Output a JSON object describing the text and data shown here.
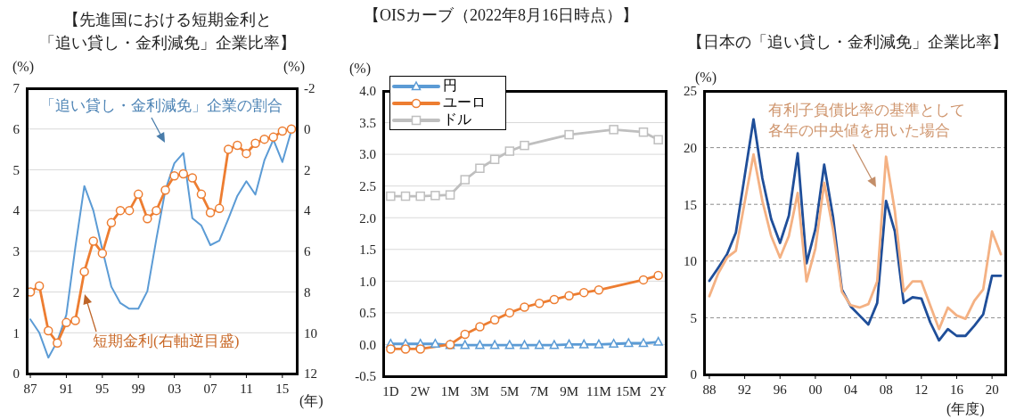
{
  "chart_data": [
    {
      "type": "line",
      "title": "【先進国における短期金利と",
      "subtitle": "「追い貸し・金利減免」企業比率】",
      "xlabel": "(年)",
      "ylabel": "(%)",
      "y2label": "(%)",
      "x": [
        1987,
        1988,
        1989,
        1990,
        1991,
        1992,
        1993,
        1994,
        1995,
        1996,
        1997,
        1998,
        1999,
        2000,
        2001,
        2002,
        2003,
        2004,
        2005,
        2006,
        2007,
        2008,
        2009,
        2010,
        2011,
        2012,
        2013,
        2014,
        2015,
        2016
      ],
      "series": [
        {
          "name": "「追い貸し・金利減免」企業の割合",
          "color": "#5b9bd5",
          "marker": "none",
          "values": [
            1.33,
            1.0,
            0.39,
            0.79,
            1.44,
            3.1,
            4.6,
            4.0,
            3.04,
            2.13,
            1.73,
            1.59,
            1.59,
            2.02,
            3.3,
            4.5,
            5.16,
            5.41,
            3.81,
            3.63,
            3.15,
            3.26,
            3.8,
            4.36,
            4.72,
            4.39,
            5.23,
            5.74,
            5.19,
            5.96
          ]
        },
        {
          "name": "短期金利(右軸逆目盛)",
          "color": "#ed7d31",
          "marker": "circle",
          "axis": "y2",
          "values": [
            8.0,
            7.7,
            9.9,
            10.5,
            9.5,
            9.4,
            7.0,
            5.5,
            6.1,
            4.6,
            4.0,
            4.0,
            3.2,
            4.4,
            4.0,
            3.0,
            2.3,
            2.2,
            2.4,
            3.2,
            4.1,
            3.9,
            1.0,
            0.8,
            1.2,
            0.7,
            0.5,
            0.4,
            0.1,
            0.0
          ]
        }
      ],
      "xlim": [
        1986.6,
        2016.6
      ],
      "xticks": [
        {
          "value": 1987,
          "label": "87"
        },
        {
          "value": 1991,
          "label": "91"
        },
        {
          "value": 1995,
          "label": "95"
        },
        {
          "value": 1999,
          "label": "99"
        },
        {
          "value": 2003,
          "label": "03"
        },
        {
          "value": 2007,
          "label": "07"
        },
        {
          "value": 2011,
          "label": "11"
        },
        {
          "value": 2015,
          "label": "15"
        }
      ],
      "ylim": [
        0,
        7
      ],
      "yticks": [
        0,
        1,
        2,
        3,
        4,
        5,
        6,
        7
      ],
      "y2lim": [
        12,
        -2
      ],
      "y2ticks": [
        12,
        10,
        8,
        6,
        4,
        2,
        0,
        -2
      ],
      "grid": "y"
    },
    {
      "type": "line",
      "title": "【OISカーブ（2022年8月16日時点）】",
      "ylabel": "(%)",
      "categories": [
        "1D",
        null,
        "2W",
        null,
        "1M",
        null,
        "3M",
        null,
        "5M",
        null,
        "7M",
        null,
        "9M",
        null,
        "11M",
        null,
        "15M",
        null,
        "2Y"
      ],
      "series": [
        {
          "name": "円",
          "color": "#5b9bd5",
          "marker": "triangle",
          "values": [
            0.01,
            0.01,
            0.01,
            0.01,
            -0.01,
            -0.01,
            -0.01,
            -0.01,
            -0.01,
            -0.01,
            -0.01,
            -0.01,
            0,
            0,
            0,
            0.01,
            0.02,
            0.02,
            0.04
          ]
        },
        {
          "name": "ユーロ",
          "color": "#ed7d31",
          "marker": "circle",
          "values": [
            -0.07,
            -0.07,
            -0.07,
            null,
            0.0,
            0.16,
            0.28,
            0.39,
            0.5,
            0.59,
            0.65,
            0.71,
            0.77,
            0.82,
            0.86,
            null,
            null,
            1.02,
            1.09
          ]
        },
        {
          "name": "ドル",
          "color": "#bfbfbf",
          "marker": "square",
          "values": [
            2.34,
            2.34,
            2.34,
            2.35,
            2.36,
            2.6,
            2.78,
            2.92,
            3.05,
            3.14,
            null,
            null,
            3.31,
            null,
            null,
            3.39,
            null,
            3.35,
            3.23
          ]
        }
      ],
      "ylim": [
        -0.5,
        4
      ],
      "yticks": [
        -0.5,
        {
          "value": 0,
          "label": "0.0"
        },
        0.5,
        {
          "value": 1,
          "label": "1.0"
        },
        1.5,
        {
          "value": 2,
          "label": "2.0"
        },
        2.5,
        {
          "value": 3,
          "label": "3.0"
        },
        3.5,
        {
          "value": 4,
          "label": "4.0"
        }
      ],
      "grid": "y",
      "legend": "top left"
    },
    {
      "type": "line",
      "title": "【日本の「追い貸し・金利減免」企業比率】",
      "xlabel": "(年度)",
      "ylabel": "(%)",
      "x": [
        1988,
        1989,
        1990,
        1991,
        1992,
        1993,
        1994,
        1995,
        1996,
        1997,
        1998,
        1999,
        2000,
        2001,
        2002,
        2003,
        2004,
        2005,
        2006,
        2007,
        2008,
        2009,
        2010,
        2011,
        2012,
        2013,
        2014,
        2015,
        2016,
        2017,
        2018,
        2019,
        2020,
        2021
      ],
      "series": [
        {
          "color": "#1f4e99",
          "values": [
            8.25,
            9.4,
            10.6,
            12.5,
            17.5,
            22.5,
            17.3,
            13.7,
            11.6,
            14.0,
            19.5,
            9.8,
            12.8,
            18.5,
            13.9,
            7.5,
            6.0,
            5.2,
            4.4,
            6.3,
            15.3,
            12.6,
            6.3,
            6.8,
            6.7,
            4.6,
            3.0,
            4.0,
            3.4,
            3.4,
            4.3,
            5.3,
            8.7,
            8.7
          ]
        },
        {
          "name": "有利子負債比率の基準として各年の中央値を用いた場合",
          "color": "#f4b183",
          "values": [
            6.9,
            8.9,
            10.3,
            10.9,
            15.2,
            19.4,
            15.3,
            12.2,
            10.3,
            12.2,
            16.0,
            8.2,
            11.1,
            16.9,
            12.8,
            7.3,
            6.1,
            5.9,
            6.2,
            8.2,
            19.2,
            14.4,
            7.3,
            8.2,
            8.2,
            6.1,
            4.0,
            5.9,
            5.2,
            4.9,
            6.5,
            7.5,
            12.6,
            10.6
          ]
        }
      ],
      "xlim": [
        1987.4,
        2021.5
      ],
      "xticks": [
        {
          "value": 1988,
          "label": "88"
        },
        {
          "value": 1992,
          "label": "92"
        },
        {
          "value": 1996,
          "label": "96"
        },
        {
          "value": 2000,
          "label": "00"
        },
        {
          "value": 2004,
          "label": "04"
        },
        {
          "value": 2008,
          "label": "08"
        },
        {
          "value": 2012,
          "label": "12"
        },
        {
          "value": 2016,
          "label": "16"
        },
        {
          "value": 2020,
          "label": "20"
        }
      ],
      "ylim": [
        0,
        25
      ],
      "yticks": [
        0,
        5,
        10,
        15,
        20,
        25
      ],
      "grid": "y"
    }
  ]
}
